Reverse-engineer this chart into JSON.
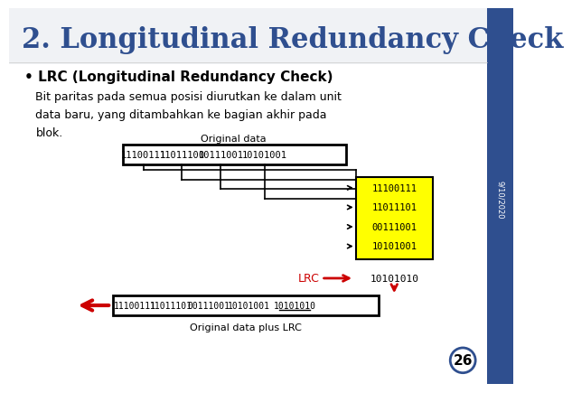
{
  "title": "2. Longitudinal Redundancy Check",
  "title_color": "#2F4F8F",
  "sidebar_color": "#2F4F8F",
  "bullet_header": "LRC (Longitudinal Redundancy Check)",
  "bullet_text": "Bit paritas pada semua posisi diurutkan ke dalam unit\ndata baru, yang ditambahkan ke bagian akhir pada\nblok.",
  "original_data_label": "Original data",
  "original_data_plus_label": "Original data plus LRC",
  "orig_data_words": [
    "11100111",
    "11011101",
    "00111001",
    "10101001"
  ],
  "output_words": [
    "11100111",
    "11011101",
    "00111001",
    "10101001"
  ],
  "lrc_value": "10101010",
  "lrc_label": "LRC",
  "page_number": "26",
  "date_label": "9/10/2020",
  "yellow_bg": "#FFFF00",
  "black": "#000000",
  "red": "#CC0000"
}
